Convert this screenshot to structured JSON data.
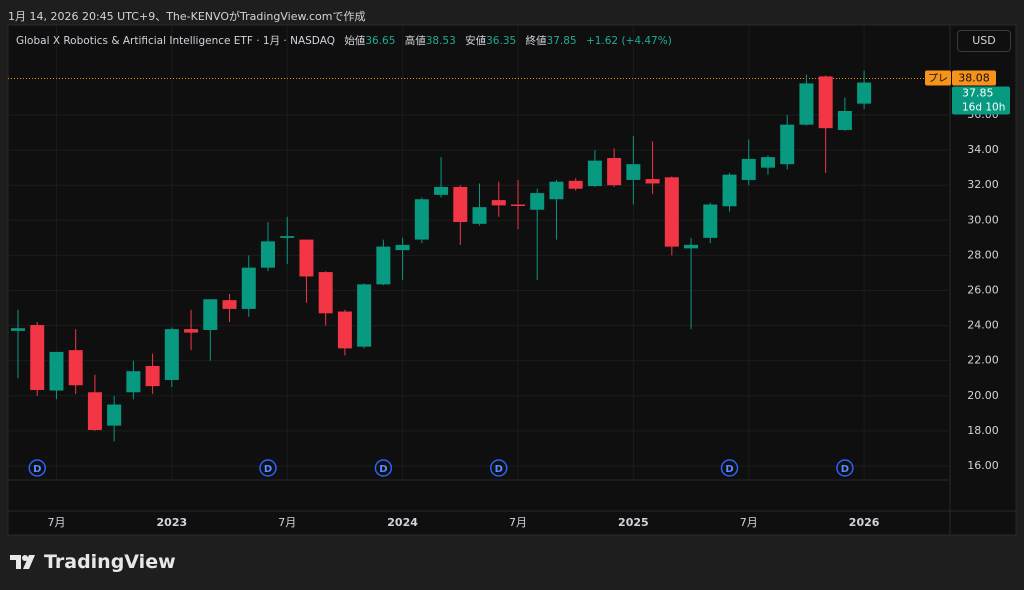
{
  "header": "1月 14, 2026 20:45 UTC+9、The-KENVOがTradingView.comで作成",
  "brand": "TradingView",
  "currency": "USD",
  "chart_data": {
    "type": "candlestick",
    "title": "Global X Robotics & Artificial Intelligence ETF · 1月 · NASDAQ",
    "legend": {
      "open": "始値",
      "high": "高値",
      "low": "安値",
      "close": "終値",
      "change": "+1.62 (+4.47%)"
    },
    "categories": [
      null,
      null,
      "7月",
      null,
      null,
      null,
      null,
      null,
      "2023",
      null,
      null,
      null,
      null,
      null,
      "7月",
      null,
      null,
      null,
      null,
      null,
      "2024",
      null,
      null,
      null,
      null,
      null,
      "7月",
      null,
      null,
      null,
      null,
      null,
      "2025",
      null,
      null,
      null,
      null,
      null,
      "7月",
      null,
      null,
      null,
      null,
      null,
      "2026"
    ],
    "open": [
      23.7,
      24.03,
      20.3,
      22.6,
      20.2,
      18.3,
      20.2,
      21.7,
      20.9,
      23.8,
      23.75,
      25.45,
      24.95,
      27.3,
      29.0,
      28.9,
      27.05,
      24.8,
      22.8,
      26.35,
      28.3,
      28.9,
      31.45,
      31.9,
      29.8,
      31.15,
      30.9,
      30.6,
      31.2,
      32.25,
      31.95,
      33.55,
      32.3,
      32.35,
      32.45,
      28.4,
      29.0,
      30.8,
      32.3,
      33.0,
      33.2,
      35.45,
      38.2,
      35.15,
      36.65
    ],
    "high": [
      24.9,
      24.2,
      22.5,
      23.8,
      21.2,
      20.0,
      22.0,
      22.4,
      23.9,
      24.9,
      25.5,
      25.8,
      28.0,
      29.9,
      30.2,
      28.9,
      27.1,
      24.9,
      26.4,
      28.9,
      29.0,
      31.3,
      33.6,
      32.0,
      32.1,
      32.2,
      32.3,
      31.8,
      32.3,
      32.4,
      34.0,
      34.1,
      34.8,
      34.5,
      32.5,
      29.0,
      31.0,
      32.7,
      34.6,
      33.7,
      36.0,
      38.3,
      38.25,
      37.0,
      38.53
    ],
    "low": [
      21.0,
      20.0,
      19.8,
      20.1,
      18.0,
      17.4,
      19.8,
      20.1,
      20.5,
      22.6,
      22.0,
      24.2,
      24.5,
      27.1,
      27.5,
      25.3,
      24.0,
      22.3,
      22.7,
      26.3,
      26.6,
      28.7,
      31.3,
      28.6,
      29.7,
      30.2,
      29.5,
      26.6,
      28.9,
      31.7,
      31.9,
      31.9,
      30.9,
      31.5,
      28.0,
      23.8,
      28.7,
      30.5,
      32.0,
      32.6,
      32.9,
      35.4,
      32.7,
      35.1,
      36.35
    ],
    "close": [
      23.85,
      20.33,
      22.5,
      20.6,
      18.05,
      19.5,
      21.4,
      20.55,
      23.8,
      23.6,
      25.5,
      24.95,
      27.3,
      28.8,
      29.1,
      26.8,
      24.7,
      22.7,
      26.35,
      28.5,
      28.6,
      31.2,
      31.9,
      29.9,
      30.75,
      30.85,
      30.85,
      31.55,
      32.2,
      31.8,
      33.4,
      32.0,
      33.2,
      32.1,
      28.5,
      28.6,
      30.9,
      32.6,
      33.5,
      33.6,
      35.45,
      37.8,
      35.25,
      36.23,
      37.85
    ],
    "up_color": "#089981",
    "down_color": "#f23645",
    "ylim": [
      15.2,
      41.13
    ],
    "yticks": [
      {
        "value": 16,
        "label": "16.00"
      },
      {
        "value": 18,
        "label": "18.00"
      },
      {
        "value": 20,
        "label": "20.00"
      },
      {
        "value": 22,
        "label": "22.00"
      },
      {
        "value": 24,
        "label": "24.00"
      },
      {
        "value": 26,
        "label": "26.00"
      },
      {
        "value": 28,
        "label": "28.00"
      },
      {
        "value": 30,
        "label": "30.00"
      },
      {
        "value": 32,
        "label": "32.00"
      },
      {
        "value": 34,
        "label": "34.00"
      },
      {
        "value": 36,
        "label": "36.00"
      }
    ],
    "grid": true,
    "pre_market": {
      "label": "プレ",
      "value": 38.08,
      "color": "#f7931a"
    },
    "countdown": "16d 10h",
    "dividends": {
      "label": "D",
      "candles": [
        1,
        13,
        19,
        25,
        37,
        43
      ],
      "color": "#2962ff"
    }
  }
}
